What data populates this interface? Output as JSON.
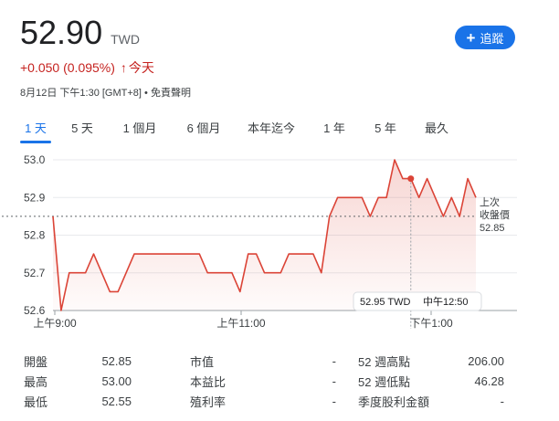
{
  "quote": {
    "price": "52.90",
    "currency": "TWD",
    "change": "+0.050 (0.095%)",
    "change_arrow": "↑",
    "change_period": "今天",
    "timestamp": "8月12日 下午1:30 [GMT+8]",
    "separator": "•",
    "disclaimer": "免責聲明",
    "change_color": "#c5221f"
  },
  "follow_button": {
    "icon": "plus-icon",
    "label": "追蹤"
  },
  "tabs": [
    {
      "label": "1 天",
      "active": true
    },
    {
      "label": "5 天"
    },
    {
      "label": "1 個月"
    },
    {
      "label": "6 個月"
    },
    {
      "label": "本年迄今"
    },
    {
      "label": "1 年"
    },
    {
      "label": "5 年"
    },
    {
      "label": "最久"
    }
  ],
  "chart_data": {
    "type": "line",
    "x_ticks": [
      "上午9:00",
      "上午11:00",
      "下午1:00"
    ],
    "y_ticks": [
      "53.0",
      "52.9",
      "52.8",
      "52.7",
      "52.6"
    ],
    "ylim": [
      52.6,
      53.0
    ],
    "series_color": "#db4437",
    "values": [
      52.85,
      52.6,
      52.7,
      52.7,
      52.7,
      52.75,
      52.7,
      52.65,
      52.65,
      52.7,
      52.75,
      52.75,
      52.75,
      52.75,
      52.75,
      52.75,
      52.75,
      52.75,
      52.75,
      52.7,
      52.7,
      52.7,
      52.7,
      52.65,
      52.75,
      52.75,
      52.7,
      52.7,
      52.7,
      52.75,
      52.75,
      52.75,
      52.75,
      52.7,
      52.85,
      52.9,
      52.9,
      52.9,
      52.9,
      52.85,
      52.9,
      52.9,
      53.0,
      52.95,
      52.95,
      52.9,
      52.95,
      52.9,
      52.85,
      52.9,
      52.85,
      52.95,
      52.9
    ],
    "previous_close": {
      "label_line1": "上次",
      "label_line2": "收盤價",
      "value": "52.85"
    },
    "tooltip": {
      "value": "52.95 TWD",
      "time": "中午12:50",
      "index": 44
    }
  },
  "stats": [
    {
      "label": "開盤",
      "value": "52.85"
    },
    {
      "label": "最高",
      "value": "53.00"
    },
    {
      "label": "最低",
      "value": "52.55"
    },
    {
      "label": "市值",
      "value": "-"
    },
    {
      "label": "本益比",
      "value": "-"
    },
    {
      "label": "殖利率",
      "value": "-"
    },
    {
      "label": "52 週高點",
      "value": "206.00"
    },
    {
      "label": "52 週低點",
      "value": "46.28"
    },
    {
      "label": "季度股利金額",
      "value": "-"
    }
  ]
}
